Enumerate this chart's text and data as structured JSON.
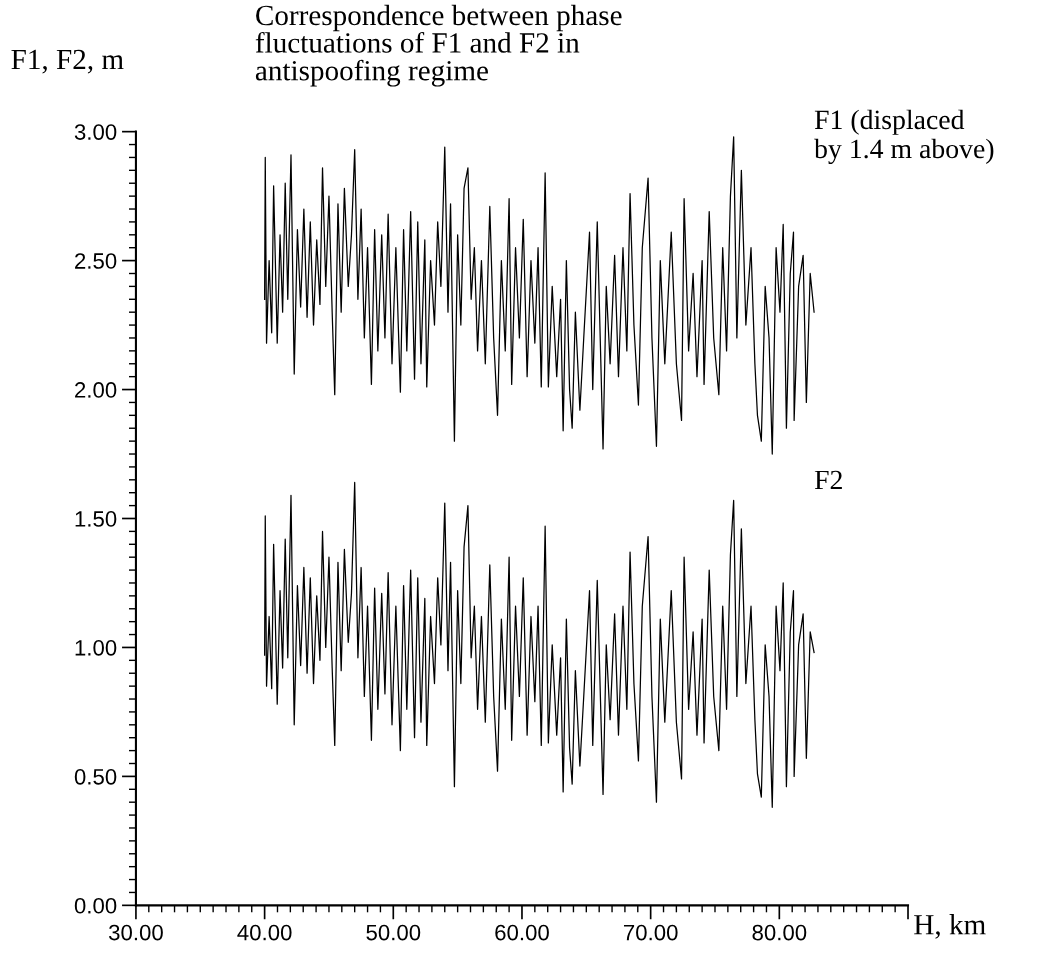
{
  "chart_data": {
    "type": "line",
    "title": "Correspondence between phase\nfluctuations of F1 and F2 in\nantispoofing regime",
    "xlabel": "H, km",
    "ylabel": "F1, F2, m",
    "xlim": [
      30,
      90
    ],
    "xticks": [
      {
        "value": 30,
        "label": "30.00"
      },
      {
        "value": 40,
        "label": "40.00"
      },
      {
        "value": 50,
        "label": "50.00"
      },
      {
        "value": 60,
        "label": "60.00"
      },
      {
        "value": 70,
        "label": "70.00"
      },
      {
        "value": 80,
        "label": "80.00"
      },
      {
        "value": 90,
        "label": null
      }
    ],
    "ylim": [
      0,
      3
    ],
    "yticks": [
      {
        "value": 0,
        "label": "0.00"
      },
      {
        "value": 0.5,
        "label": "0.50"
      },
      {
        "value": 1,
        "label": "1.00"
      },
      {
        "value": 1.5,
        "label": "1.50"
      },
      {
        "value": 2,
        "label": "2.00"
      },
      {
        "value": 2.5,
        "label": "2.50"
      },
      {
        "value": 3,
        "label": "3.00"
      }
    ],
    "grid": false,
    "legend": false,
    "marker": "none",
    "line_style": "solid",
    "x": [
      40.0,
      40.05,
      40.15,
      40.35,
      40.55,
      40.7,
      40.98,
      41.2,
      41.4,
      41.6,
      41.8,
      42.05,
      42.3,
      42.55,
      42.8,
      43.05,
      43.3,
      43.55,
      43.8,
      44.05,
      44.3,
      44.5,
      44.75,
      45.0,
      45.25,
      45.45,
      45.7,
      45.95,
      46.2,
      46.5,
      46.75,
      47.0,
      47.25,
      47.5,
      47.75,
      48.0,
      48.3,
      48.55,
      48.8,
      49.1,
      49.35,
      49.6,
      49.9,
      50.2,
      50.55,
      50.8,
      51.05,
      51.35,
      51.65,
      51.9,
      52.15,
      52.45,
      52.6,
      52.9,
      53.2,
      53.45,
      53.7,
      54.0,
      54.25,
      54.45,
      54.75,
      55.0,
      55.25,
      55.5,
      55.8,
      56.05,
      56.3,
      56.55,
      56.85,
      57.15,
      57.5,
      57.8,
      58.1,
      58.4,
      58.7,
      59.0,
      59.2,
      59.5,
      59.8,
      60.1,
      60.4,
      60.7,
      61.0,
      61.25,
      61.5,
      61.8,
      62.05,
      62.35,
      62.7,
      63.0,
      63.2,
      63.45,
      63.7,
      63.9,
      64.15,
      64.5,
      64.8,
      65.25,
      65.5,
      65.85,
      66.3,
      66.55,
      66.85,
      67.2,
      67.5,
      67.85,
      68.15,
      68.4,
      68.7,
      69.05,
      69.35,
      69.8,
      70.1,
      70.45,
      70.75,
      71.1,
      71.6,
      72.0,
      72.4,
      72.6,
      72.95,
      73.3,
      73.6,
      74.0,
      74.15,
      74.55,
      74.9,
      75.3,
      75.6,
      75.9,
      76.2,
      76.45,
      76.7,
      77.05,
      77.4,
      77.8,
      78.1,
      78.3,
      78.6,
      78.9,
      79.2,
      79.45,
      79.75,
      80.05,
      80.3,
      80.55,
      80.85,
      81.1,
      81.15,
      81.5,
      81.85,
      82.1,
      82.4,
      82.7
    ],
    "series": [
      {
        "name": "F1 (displaced\nby 1.4 m above)",
        "color": "#000000",
        "values": [
          2.35,
          2.9,
          2.18,
          2.5,
          2.22,
          2.79,
          2.18,
          2.6,
          2.3,
          2.8,
          2.35,
          2.91,
          2.06,
          2.62,
          2.32,
          2.7,
          2.28,
          2.65,
          2.25,
          2.58,
          2.33,
          2.86,
          2.4,
          2.75,
          2.3,
          1.98,
          2.72,
          2.3,
          2.78,
          2.4,
          2.6,
          2.93,
          2.35,
          2.7,
          2.2,
          2.55,
          2.02,
          2.62,
          2.15,
          2.6,
          2.2,
          2.68,
          2.1,
          2.55,
          1.99,
          2.62,
          2.15,
          2.69,
          2.04,
          2.65,
          2.1,
          2.58,
          2.01,
          2.5,
          2.25,
          2.65,
          2.4,
          2.94,
          2.3,
          2.72,
          1.8,
          2.6,
          2.25,
          2.78,
          2.86,
          2.35,
          2.55,
          2.15,
          2.5,
          2.1,
          2.71,
          2.2,
          1.9,
          2.5,
          2.15,
          2.74,
          2.02,
          2.55,
          2.2,
          2.66,
          2.05,
          2.5,
          2.18,
          2.55,
          2.01,
          2.84,
          2.01,
          2.4,
          2.05,
          2.35,
          1.84,
          2.5,
          2.0,
          1.85,
          2.3,
          1.92,
          2.2,
          2.61,
          2.0,
          2.65,
          1.77,
          2.4,
          2.1,
          2.52,
          2.05,
          2.55,
          2.15,
          2.76,
          2.25,
          1.94,
          2.55,
          2.82,
          2.2,
          1.78,
          2.5,
          2.1,
          2.61,
          2.1,
          1.88,
          2.74,
          2.15,
          2.45,
          2.05,
          2.5,
          2.02,
          2.69,
          2.2,
          1.98,
          2.55,
          2.15,
          2.75,
          2.98,
          2.2,
          2.85,
          2.25,
          2.55,
          2.1,
          1.9,
          1.8,
          2.4,
          2.2,
          1.75,
          2.55,
          2.3,
          2.64,
          1.85,
          2.45,
          2.61,
          1.88,
          2.4,
          2.52,
          1.95,
          2.45,
          2.3
        ]
      },
      {
        "name": "F2",
        "color": "#000000",
        "values": [
          0.97,
          1.51,
          0.85,
          1.12,
          0.84,
          1.4,
          0.78,
          1.22,
          0.92,
          1.42,
          0.96,
          1.59,
          0.7,
          1.24,
          0.93,
          1.31,
          0.9,
          1.27,
          0.86,
          1.2,
          0.95,
          1.45,
          1.0,
          1.35,
          0.92,
          0.62,
          1.33,
          0.91,
          1.38,
          1.02,
          1.21,
          1.64,
          0.96,
          1.31,
          0.81,
          1.16,
          0.64,
          1.23,
          0.76,
          1.21,
          0.82,
          1.29,
          0.7,
          1.16,
          0.6,
          1.24,
          0.76,
          1.3,
          0.65,
          1.27,
          0.71,
          1.19,
          0.62,
          1.12,
          0.86,
          1.27,
          1.01,
          1.56,
          0.91,
          1.33,
          0.46,
          1.22,
          0.86,
          1.39,
          1.55,
          0.96,
          1.16,
          0.76,
          1.12,
          0.71,
          1.32,
          0.81,
          0.52,
          1.11,
          0.76,
          1.35,
          0.64,
          1.16,
          0.81,
          1.27,
          0.66,
          1.12,
          0.79,
          1.16,
          0.62,
          1.47,
          0.63,
          1.01,
          0.66,
          0.96,
          0.44,
          1.11,
          0.61,
          0.47,
          0.91,
          0.54,
          0.81,
          1.22,
          0.62,
          1.26,
          0.43,
          1.01,
          0.72,
          1.13,
          0.66,
          1.16,
          0.76,
          1.37,
          0.86,
          0.56,
          1.16,
          1.43,
          0.81,
          0.4,
          1.11,
          0.71,
          1.22,
          0.71,
          0.49,
          1.35,
          0.76,
          1.06,
          0.66,
          1.11,
          0.63,
          1.3,
          0.81,
          0.6,
          1.16,
          0.76,
          1.36,
          1.57,
          0.81,
          1.46,
          0.86,
          1.16,
          0.72,
          0.51,
          0.42,
          1.01,
          0.81,
          0.38,
          1.16,
          0.91,
          1.25,
          0.46,
          1.06,
          1.22,
          0.5,
          1.01,
          1.13,
          0.57,
          1.06,
          0.98
        ]
      }
    ]
  }
}
